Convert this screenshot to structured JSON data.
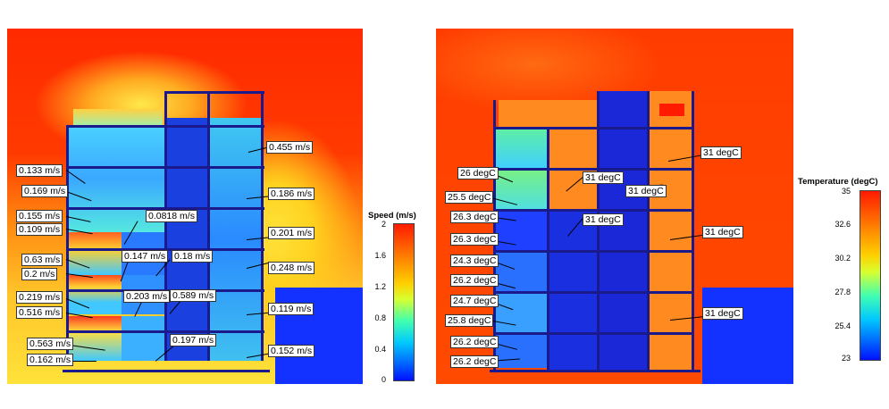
{
  "speed_panel": {
    "legend_title": "Speed (m/s)",
    "legend_ticks": [
      "2",
      "1.6",
      "1.2",
      "0.8",
      "0.4",
      "0"
    ],
    "labels": [
      "0.455 m/s",
      "0.133 m/s",
      "0.169 m/s",
      "0.186 m/s",
      "0.155 m/s",
      "0.109 m/s",
      "0.0818 m/s",
      "0.201 m/s",
      "0.63 m/s",
      "0.2 m/s",
      "0.147 m/s",
      "0.18 m/s",
      "0.248 m/s",
      "0.219 m/s",
      "0.516 m/s",
      "0.203 m/s",
      "0.589 m/s",
      "0.119 m/s",
      "0.563 m/s",
      "0.162 m/s",
      "0.197 m/s",
      "0.152 m/s"
    ]
  },
  "temperature_panel": {
    "legend_title": "Temperature (degC)",
    "legend_ticks": [
      "35",
      "32.6",
      "30.2",
      "27.8",
      "25.4",
      "23"
    ],
    "labels": [
      "31 degC",
      "26 degC",
      "31 degC",
      "25.5 degC",
      "31 degC",
      "26.3 degC",
      "31 degC",
      "26.3 degC",
      "31 degC",
      "24.3 degC",
      "26.2 degC",
      "24.7 degC",
      "31 degC",
      "25.8 degC",
      "26.2 degC",
      "26.2 degC"
    ]
  },
  "colors": {
    "scale_high": "#ff2000",
    "scale_mid": "#ffe000",
    "scale_low": "#0018ff",
    "structure": "#1a1a8c"
  }
}
